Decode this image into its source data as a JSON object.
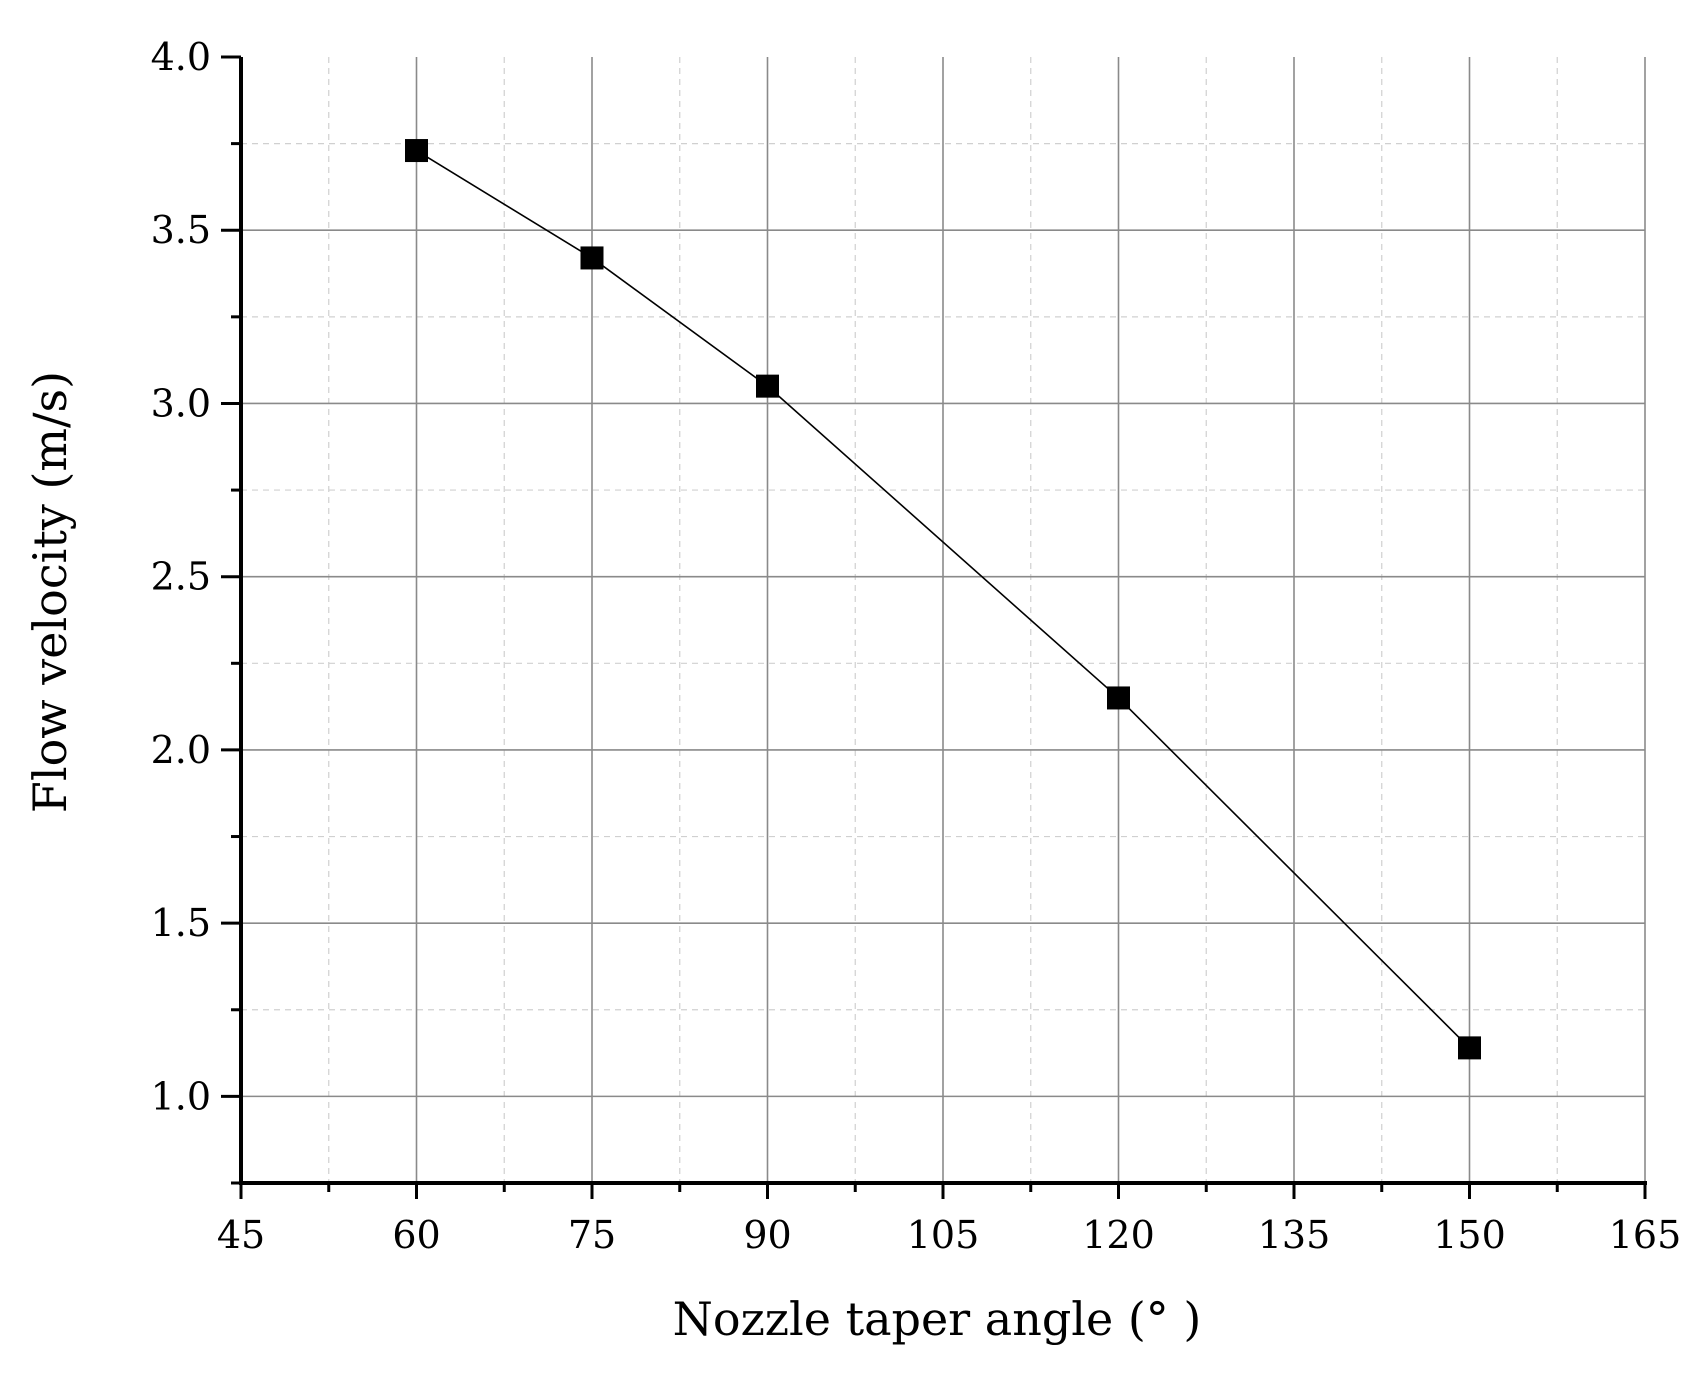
{
  "chart_data": {
    "type": "line",
    "title": "",
    "xlabel": "Nozzle taper angle (° )",
    "ylabel": "Flow velocity (m/s)",
    "xlim": [
      45,
      165
    ],
    "ylim": [
      0.75,
      4.0
    ],
    "x_ticks": [
      45,
      60,
      75,
      90,
      105,
      120,
      135,
      150,
      165
    ],
    "x_tick_labels": [
      "45",
      "60",
      "75",
      "90",
      "105",
      "120",
      "135",
      "150",
      "165"
    ],
    "y_ticks": [
      1.0,
      1.5,
      2.0,
      2.5,
      3.0,
      3.5,
      4.0
    ],
    "y_tick_labels": [
      "1.0",
      "1.5",
      "2.0",
      "2.5",
      "3.0",
      "3.5",
      "4.0"
    ],
    "x_minor_step": 7.5,
    "y_minor_step": 0.25,
    "grid": true,
    "legend": "none",
    "marker": "square",
    "line_color": "#000000",
    "marker_color": "#000000",
    "series": [
      {
        "x": [
          60,
          75,
          90,
          120,
          150
        ],
        "y": [
          3.73,
          3.42,
          3.05,
          2.15,
          1.14
        ]
      }
    ]
  }
}
